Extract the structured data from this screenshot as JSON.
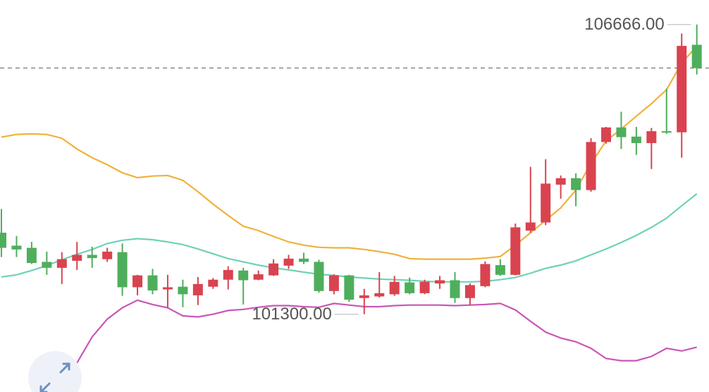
{
  "chart_data": {
    "type": "candlestick",
    "ylim": [
      99860,
      107120
    ],
    "up_color": "#d9434f",
    "down_color": "#4fae5c",
    "open": [
      102810,
      102570,
      102530,
      102270,
      102160,
      102290,
      102400,
      102320,
      102450,
      101800,
      102020,
      101760,
      101810,
      101650,
      101810,
      101940,
      102110,
      101940,
      102020,
      102200,
      102330,
      102270,
      101730,
      102020,
      101600,
      101630,
      101670,
      101890,
      101690,
      101870,
      101930,
      101600,
      101820,
      102210,
      102030,
      102850,
      103000,
      103700,
      103820,
      103600,
      104490,
      104760,
      104590,
      104470,
      104690,
      104670,
      106290
    ],
    "high": [
      103250,
      102750,
      102640,
      102460,
      102450,
      102640,
      102550,
      102530,
      102610,
      102030,
      102140,
      102030,
      101940,
      101990,
      101970,
      102190,
      102160,
      102110,
      102320,
      102400,
      102440,
      102310,
      102040,
      102030,
      101770,
      102080,
      102010,
      101980,
      101940,
      102010,
      102080,
      101870,
      102280,
      102320,
      102980,
      104030,
      104170,
      103870,
      103910,
      104560,
      104770,
      105050,
      104770,
      104750,
      105480,
      106500,
      106666
    ],
    "low": [
      102360,
      102360,
      102230,
      102030,
      101860,
      102120,
      102160,
      102270,
      101640,
      101650,
      101670,
      101420,
      101430,
      101470,
      101770,
      101760,
      101480,
      101930,
      102010,
      102140,
      102230,
      101700,
      101670,
      101530,
      101300,
      101610,
      101640,
      101670,
      101670,
      101770,
      101510,
      101460,
      101800,
      102010,
      102020,
      102810,
      102950,
      103440,
      103300,
      103570,
      104460,
      104360,
      104250,
      103990,
      104640,
      104200,
      105740
    ],
    "close": [
      102530,
      102500,
      102250,
      102160,
      102320,
      102400,
      102340,
      102460,
      101800,
      102020,
      101740,
      101800,
      101670,
      101860,
      101940,
      102120,
      101930,
      102040,
      102240,
      102330,
      102270,
      101730,
      102020,
      101570,
      101650,
      101690,
      101900,
      101690,
      101900,
      101930,
      101600,
      101840,
      102230,
      102030,
      102910,
      103000,
      103720,
      103820,
      103600,
      104490,
      104760,
      104580,
      104470,
      104690,
      104670,
      106270,
      105860
    ],
    "series": [
      {
        "color": "#efb23d",
        "values": [
          104580,
          104630,
          104640,
          104630,
          104560,
          104360,
          104200,
          104070,
          103920,
          103830,
          103860,
          103870,
          103780,
          103570,
          103340,
          103130,
          102930,
          102850,
          102740,
          102640,
          102580,
          102540,
          102530,
          102530,
          102500,
          102460,
          102410,
          102330,
          102320,
          102320,
          102320,
          102320,
          102340,
          102370,
          102580,
          102810,
          103040,
          103270,
          103600,
          104090,
          104510,
          104730,
          104970,
          105200,
          105460,
          105950,
          106270
        ]
      },
      {
        "color": "#6fd2b6",
        "values": [
          101990,
          102030,
          102110,
          102200,
          102310,
          102410,
          102500,
          102610,
          102670,
          102700,
          102680,
          102640,
          102590,
          102510,
          102420,
          102330,
          102270,
          102210,
          102160,
          102120,
          102080,
          102040,
          102020,
          101990,
          101970,
          101950,
          101940,
          101930,
          101910,
          101900,
          101900,
          101900,
          101910,
          101940,
          101980,
          102060,
          102150,
          102210,
          102290,
          102400,
          102510,
          102630,
          102760,
          102910,
          103080,
          103310,
          103530
        ]
      },
      {
        "color": "#c957b6",
        "values": [
          null,
          null,
          null,
          null,
          99970,
          100400,
          100880,
          101210,
          101420,
          101560,
          101480,
          101420,
          101270,
          101250,
          101300,
          101370,
          101390,
          101430,
          101460,
          101460,
          101440,
          101430,
          101500,
          101470,
          101440,
          101440,
          101460,
          101470,
          101470,
          101470,
          101460,
          101470,
          101480,
          101500,
          101380,
          101170,
          100970,
          100860,
          100790,
          100670,
          100480,
          100440,
          100440,
          100520,
          100670,
          100620,
          100690
        ]
      }
    ],
    "annotations": [
      "106666.00",
      "101300.00"
    ]
  }
}
